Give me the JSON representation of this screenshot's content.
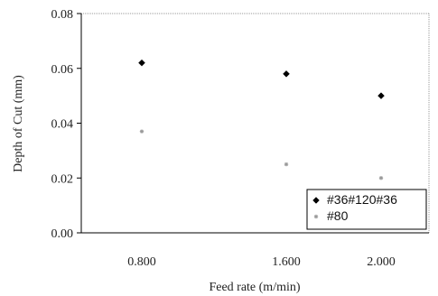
{
  "chart_data": {
    "type": "scatter",
    "title": "",
    "xlabel": "Feed rate (m/min)",
    "ylabel": "Depth of Cut (mm)",
    "categories": [
      "0.800",
      "1.600",
      "2.000"
    ],
    "ylim": [
      0,
      0.08
    ],
    "yticks": [
      "0.00",
      "0.02",
      "0.04",
      "0.06",
      "0.08"
    ],
    "grid": false,
    "legend_position": "bottom-right",
    "series": [
      {
        "name": "#36#120#36",
        "marker": "diamond",
        "color": "#000000",
        "values": [
          0.062,
          0.058,
          0.05
        ]
      },
      {
        "name": "#80",
        "marker": "star",
        "color": "#9a9a9a",
        "values": [
          0.037,
          0.025,
          0.02
        ]
      }
    ]
  }
}
